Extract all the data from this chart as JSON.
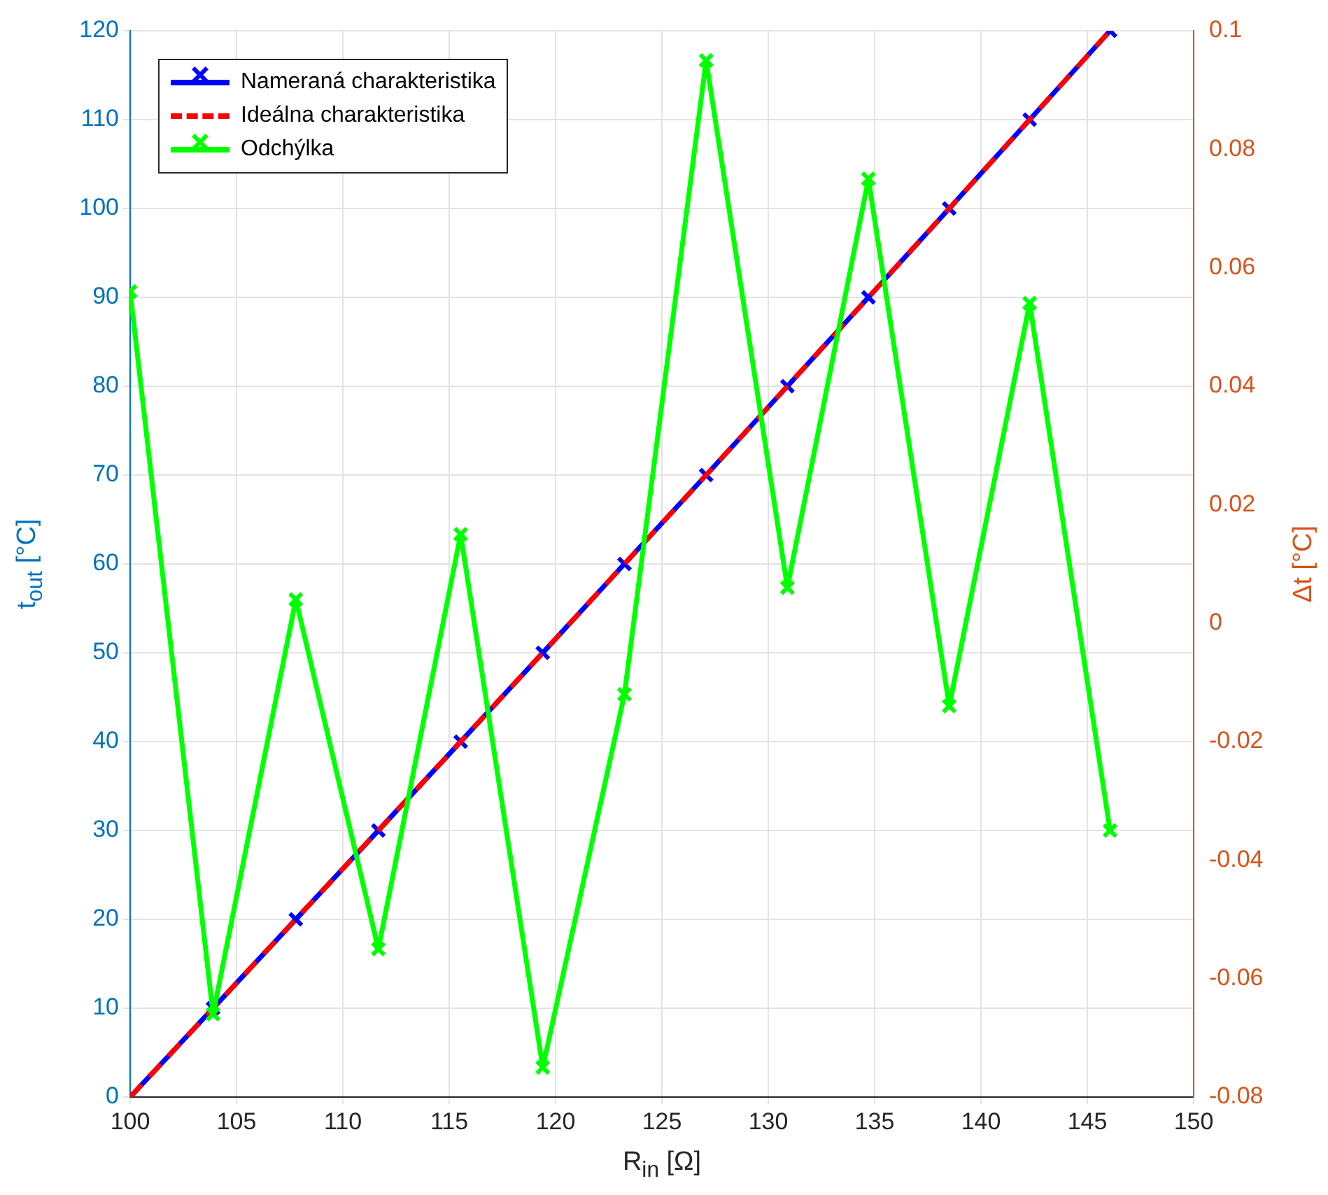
{
  "chart_data": {
    "type": "line",
    "xlabel": "R$_{in}$ [Ω]",
    "ylabel": "t$_{out}$ [°C]",
    "y2label": "Δt [°C]",
    "x": [
      100,
      103.9,
      107.79,
      111.67,
      115.54,
      119.4,
      123.24,
      127.08,
      130.9,
      134.71,
      138.51,
      142.29,
      146.07
    ],
    "series": [
      {
        "name": "Nameraná charakteristika",
        "color": "#0000ff",
        "marker": "cross",
        "line_style": "solid",
        "values": [
          0,
          10,
          20,
          30,
          40,
          50,
          60,
          70,
          80,
          90,
          100,
          110,
          120
        ]
      },
      {
        "name": "Ideálna charakteristika",
        "color": "#ff0000",
        "marker": "none",
        "line_style": "dashed",
        "values": [
          0,
          10,
          20,
          30,
          40,
          50,
          60,
          70,
          80,
          90,
          100,
          110,
          120
        ]
      },
      {
        "name": "Odchýlka",
        "color": "#00ff00",
        "marker": "cross",
        "line_style": "solid",
        "axis": "y2",
        "values": [
          0.056,
          -0.066,
          0.004,
          -0.055,
          0.015,
          -0.075,
          -0.012,
          0.095,
          0.006,
          0.075,
          -0.014,
          0.054,
          -0.035
        ]
      }
    ],
    "xlim": [
      100,
      150
    ],
    "xticks": [
      100,
      105,
      110,
      115,
      120,
      125,
      130,
      135,
      140,
      145,
      150
    ],
    "ylim": [
      0,
      120
    ],
    "yticks": [
      0,
      10,
      20,
      30,
      40,
      50,
      60,
      70,
      80,
      90,
      100,
      110,
      120
    ],
    "y2lim": [
      -0.08,
      0.1
    ],
    "y2ticks": [
      -0.08,
      -0.06,
      -0.04,
      -0.02,
      0,
      0.02,
      0.04,
      0.06,
      0.08,
      0.1
    ],
    "grid": true,
    "legend": "top left"
  }
}
